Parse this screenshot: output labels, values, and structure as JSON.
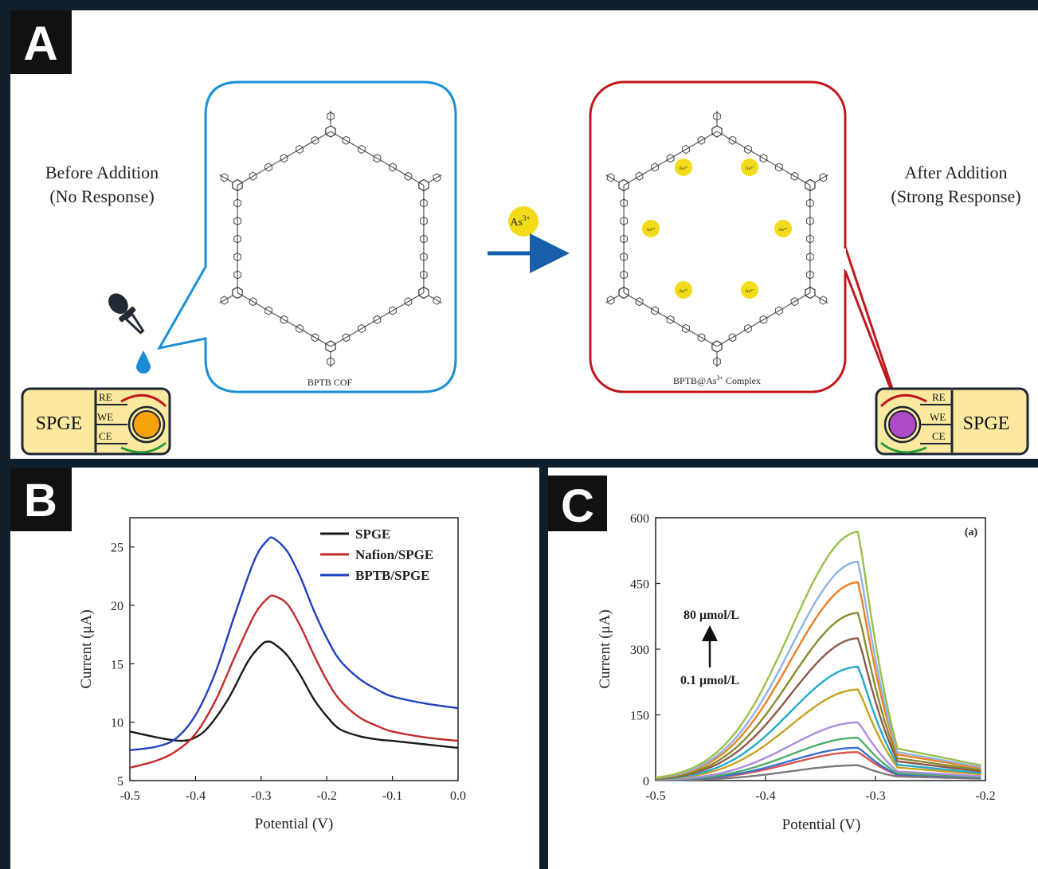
{
  "panel_a": {
    "label": "A",
    "before_line1": "Before Addition",
    "before_line2": "(No Response)",
    "after_line1": "After Addition",
    "after_line2": "(Strong Response)",
    "cof_caption": "BPTB COF",
    "complex_caption_main": "BPTB@As",
    "complex_caption_sup": "3+",
    "complex_caption_end": " Complex",
    "ion_label": "As",
    "ion_sup": "3+",
    "small_ion_label": "As³⁺",
    "spge_label": "SPGE",
    "electrode_re": "RE",
    "electrode_we": "WE",
    "electrode_ce": "CE",
    "colors": {
      "cof_box": "#1b8fd6",
      "complex_box": "#c0171d",
      "arrow": "#1a5faa",
      "ion": "#f2dc1a",
      "spge_fill": "#fbe9a0",
      "we_before": "#f6a20c",
      "we_after": "#b04ac8"
    }
  },
  "panel_b": {
    "label": "B",
    "chart_data": {
      "type": "line",
      "xlabel": "Potential (V)",
      "ylabel": "Current (μA)",
      "xlim": [
        -0.5,
        0.0
      ],
      "ylim": [
        5,
        27.5
      ],
      "xticks": [
        "-0.5",
        "-0.4",
        "-0.3",
        "-0.2",
        "-0.1",
        "0.0"
      ],
      "yticks": [
        "5",
        "10",
        "15",
        "20",
        "25"
      ],
      "legend_position": "top-right",
      "series": [
        {
          "name": "SPGE",
          "color": "#1a1a1a",
          "x": [
            -0.5,
            -0.45,
            -0.42,
            -0.4,
            -0.38,
            -0.35,
            -0.32,
            -0.3,
            -0.29,
            -0.28,
            -0.26,
            -0.24,
            -0.22,
            -0.2,
            -0.18,
            -0.15,
            -0.12,
            -0.1,
            -0.05,
            0.0
          ],
          "values": [
            9.2,
            8.6,
            8.4,
            8.7,
            9.6,
            12.0,
            15.2,
            16.6,
            16.9,
            16.7,
            15.7,
            14.0,
            12.0,
            10.5,
            9.4,
            8.8,
            8.5,
            8.4,
            8.1,
            7.8
          ]
        },
        {
          "name": "Nafion/SPGE",
          "color": "#c42a2a",
          "x": [
            -0.5,
            -0.46,
            -0.43,
            -0.4,
            -0.37,
            -0.34,
            -0.31,
            -0.29,
            -0.28,
            -0.26,
            -0.24,
            -0.22,
            -0.2,
            -0.18,
            -0.15,
            -0.12,
            -0.1,
            -0.05,
            0.0
          ],
          "values": [
            6.1,
            6.7,
            7.5,
            9.0,
            11.8,
            15.6,
            19.2,
            20.6,
            20.8,
            20.1,
            18.2,
            15.8,
            13.6,
            11.9,
            10.4,
            9.6,
            9.2,
            8.7,
            8.4
          ]
        },
        {
          "name": "BPTB/SPGE",
          "color": "#1f3fbf",
          "x": [
            -0.5,
            -0.46,
            -0.43,
            -0.4,
            -0.37,
            -0.34,
            -0.31,
            -0.29,
            -0.28,
            -0.26,
            -0.24,
            -0.22,
            -0.2,
            -0.18,
            -0.15,
            -0.12,
            -0.1,
            -0.05,
            0.0
          ],
          "values": [
            7.6,
            7.9,
            8.6,
            10.6,
            14.2,
            19.2,
            23.9,
            25.6,
            25.7,
            24.6,
            22.4,
            19.6,
            17.2,
            15.3,
            13.7,
            12.7,
            12.2,
            11.6,
            11.2
          ]
        }
      ]
    }
  },
  "panel_c": {
    "label": "C",
    "tag": "(a)",
    "conc_high": "80 μmol/L",
    "conc_low": "0.1 μmol/L",
    "chart_data": {
      "type": "line",
      "xlabel": "Potential (V)",
      "ylabel": "Current (μA)",
      "xlim": [
        -0.5,
        -0.2
      ],
      "ylim": [
        0,
        600
      ],
      "xticks": [
        "-0.5",
        "-0.4",
        "-0.3",
        "-0.2"
      ],
      "yticks": [
        "0",
        "150",
        "300",
        "450",
        "600"
      ],
      "peak_potential": -0.315,
      "series_peaks": [
        35,
        65,
        75,
        98,
        133,
        208,
        260,
        325,
        383,
        453,
        500,
        568
      ],
      "series_colors": [
        "#7a7a7a",
        "#d9534f",
        "#3a6fd1",
        "#4cae6b",
        "#b08be0",
        "#c8a020",
        "#23a9c9",
        "#8c5a4a",
        "#8a8a30",
        "#f07f24",
        "#8fb3e8",
        "#9ac04a"
      ]
    }
  }
}
